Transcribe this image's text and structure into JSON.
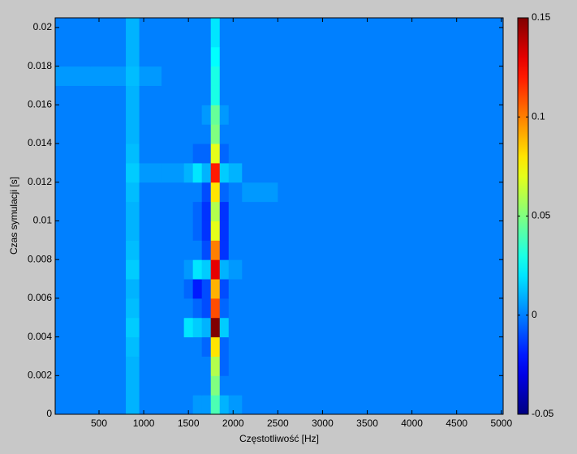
{
  "chart_data": {
    "type": "heatmap",
    "xlabel": "Częstotliwość [Hz]",
    "ylabel": "Czas symulacji [s]",
    "xlim": [
      10,
      5020
    ],
    "ylim": [
      0,
      0.0205
    ],
    "xticks": [
      500,
      1000,
      1500,
      2000,
      2500,
      3000,
      3500,
      4000,
      4500,
      5000
    ],
    "yticks": [
      0,
      0.002,
      0.004,
      0.006,
      0.008,
      0.01,
      0.012,
      0.014,
      0.016,
      0.018,
      0.02
    ],
    "colormap": "jet",
    "clim": [
      -0.05,
      0.15
    ],
    "cticks": [
      -0.05,
      0,
      0.05,
      0.1,
      0.15
    ],
    "xbins": [
      10,
      400,
      800,
      950,
      1200,
      1450,
      1550,
      1650,
      1750,
      1850,
      1950,
      2100,
      2500,
      3000,
      4000,
      5020
    ],
    "ybins": [
      0,
      0.001,
      0.002,
      0.003,
      0.004,
      0.005,
      0.006,
      0.007,
      0.008,
      0.009,
      0.01,
      0.011,
      0.012,
      0.013,
      0.014,
      0.015,
      0.016,
      0.017,
      0.018,
      0.019,
      0.02,
      0.0205
    ],
    "values": [
      [
        0,
        0,
        0.01,
        0,
        0,
        0,
        0.005,
        0.005,
        0.04,
        0.01,
        0.005,
        0,
        0,
        0,
        0
      ],
      [
        0,
        0,
        0.01,
        0,
        0,
        0,
        0,
        0,
        0.05,
        0,
        0,
        0,
        0,
        0,
        0
      ],
      [
        0,
        0,
        0.01,
        0,
        0,
        0,
        0,
        0,
        0.06,
        -0.005,
        0,
        0,
        0,
        0,
        0
      ],
      [
        0,
        0,
        0.012,
        0,
        0,
        0,
        0,
        -0.005,
        0.08,
        -0.005,
        0,
        0,
        0,
        0,
        0
      ],
      [
        0,
        0,
        0.015,
        0,
        0,
        0.02,
        0.015,
        0.01,
        0.15,
        0.015,
        0,
        0,
        0,
        0,
        0
      ],
      [
        0,
        0,
        0.012,
        0,
        0,
        0,
        -0.005,
        -0.01,
        0.11,
        -0.005,
        0,
        0,
        0,
        0,
        0
      ],
      [
        0,
        0,
        0.01,
        0,
        0,
        -0.005,
        -0.02,
        -0.01,
        0.09,
        -0.01,
        0,
        0,
        0,
        0,
        0
      ],
      [
        0,
        0,
        0.015,
        0,
        0,
        0.005,
        0.02,
        0.015,
        0.13,
        0.01,
        0.005,
        0,
        0,
        0,
        0
      ],
      [
        0,
        0,
        0.012,
        0,
        0,
        0,
        0,
        -0.01,
        0.1,
        -0.015,
        0,
        0,
        0,
        0,
        0
      ],
      [
        0,
        0,
        0.01,
        0,
        0,
        0,
        -0.005,
        -0.015,
        0.07,
        -0.015,
        0,
        0,
        0,
        0,
        0
      ],
      [
        0,
        0,
        0.01,
        0,
        0,
        0,
        -0.005,
        -0.015,
        0.06,
        -0.015,
        0,
        0,
        0,
        0,
        0
      ],
      [
        0,
        0,
        0.012,
        0,
        0,
        0,
        0,
        -0.01,
        0.08,
        -0.005,
        0,
        0.005,
        0,
        0,
        0
      ],
      [
        0,
        0,
        0.015,
        0.005,
        0.005,
        0.01,
        0.02,
        0.01,
        0.12,
        0.015,
        0.01,
        0,
        0,
        0,
        0
      ],
      [
        0,
        0,
        0.012,
        0,
        0,
        0,
        -0.005,
        -0.005,
        0.07,
        -0.005,
        0,
        0,
        0,
        0,
        0
      ],
      [
        0,
        0,
        0.01,
        0,
        0,
        0,
        0,
        0,
        0.05,
        0,
        0,
        0,
        0,
        0,
        0
      ],
      [
        0,
        0,
        0.01,
        0,
        0,
        0,
        0,
        0.005,
        0.045,
        0.005,
        0,
        0,
        0,
        0,
        0
      ],
      [
        0,
        0,
        0.01,
        0,
        0,
        0,
        0,
        0,
        0.03,
        0,
        0,
        0,
        0,
        0,
        0
      ],
      [
        0.005,
        0.005,
        0.012,
        0.005,
        0,
        0,
        0,
        0,
        0.03,
        0,
        0,
        0,
        0,
        0,
        0
      ],
      [
        0,
        0,
        0.01,
        0,
        0,
        0,
        0,
        0,
        0.025,
        0,
        0,
        0,
        0,
        0,
        0
      ],
      [
        0,
        0,
        0.01,
        0,
        0,
        0,
        0,
        0,
        0.02,
        0,
        0,
        0,
        0,
        0,
        0
      ],
      [
        0,
        0,
        0.01,
        0,
        0,
        0,
        0,
        0,
        0.02,
        0,
        0,
        0,
        0,
        0,
        0
      ]
    ]
  }
}
